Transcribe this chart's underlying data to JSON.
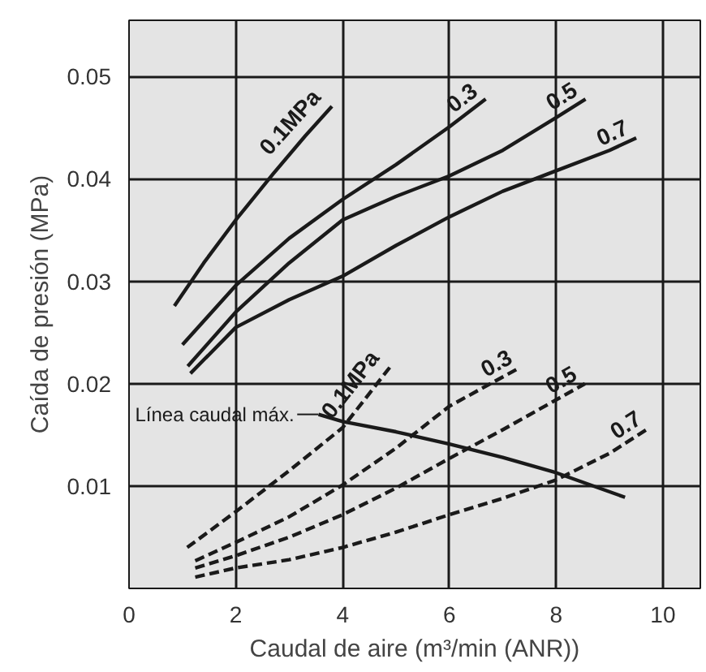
{
  "chart_data": {
    "type": "line",
    "xlabel": "Caudal de aire (m³/min (ANR))",
    "ylabel": "Caída de presión (MPa)",
    "xlim": [
      0,
      10.7
    ],
    "ylim": [
      0,
      0.0555
    ],
    "xticks": [
      0,
      2,
      4,
      6,
      8,
      10
    ],
    "yticks": [
      0.01,
      0.02,
      0.03,
      0.04,
      0.05
    ],
    "grid": true,
    "marker": "none",
    "series": [
      {
        "name": "0.1MPa",
        "color": "#1a1a1a",
        "line_style": "solid",
        "x": [
          0.85,
          1.4,
          2.0,
          2.7,
          3.3,
          3.8
        ],
        "values": [
          0.0276,
          0.0318,
          0.036,
          0.0405,
          0.0442,
          0.0471
        ]
      },
      {
        "name": "0.3",
        "color": "#1a1a1a",
        "line_style": "solid",
        "x": [
          1.0,
          2.0,
          3.0,
          4.0,
          5.0,
          6.0,
          6.68
        ],
        "values": [
          0.0238,
          0.0296,
          0.0342,
          0.038,
          0.0414,
          0.0451,
          0.0478
        ]
      },
      {
        "name": "0.5",
        "color": "#1a1a1a",
        "line_style": "solid",
        "x": [
          1.1,
          2.0,
          3.0,
          4.0,
          5.0,
          6.0,
          7.0,
          8.0,
          8.55
        ],
        "values": [
          0.0217,
          0.027,
          0.0318,
          0.036,
          0.0383,
          0.0403,
          0.0428,
          0.046,
          0.0478
        ]
      },
      {
        "name": "0.7",
        "color": "#1a1a1a",
        "line_style": "solid",
        "x": [
          1.15,
          2.0,
          3.0,
          4.0,
          5.0,
          6.0,
          7.0,
          8.0,
          9.0,
          9.5
        ],
        "values": [
          0.021,
          0.0255,
          0.0282,
          0.0305,
          0.0335,
          0.0363,
          0.0388,
          0.0408,
          0.0428,
          0.044
        ]
      },
      {
        "name": "0.1MPa",
        "color": "#1a1a1a",
        "line_style": "dashed",
        "x": [
          1.09,
          2.0,
          3.0,
          4.0,
          4.9
        ],
        "values": [
          0.004,
          0.0075,
          0.0115,
          0.0157,
          0.0217
        ]
      },
      {
        "name": "0.3",
        "color": "#1a1a1a",
        "line_style": "dashed",
        "x": [
          1.24,
          2.0,
          3.0,
          4.0,
          5.0,
          6.0,
          7.33
        ],
        "values": [
          0.0027,
          0.0045,
          0.007,
          0.0101,
          0.0137,
          0.0178,
          0.0216
        ]
      },
      {
        "name": "0.5",
        "color": "#1a1a1a",
        "line_style": "dashed",
        "x": [
          1.24,
          2.0,
          3.0,
          4.0,
          5.0,
          6.0,
          7.0,
          8.54
        ],
        "values": [
          0.002,
          0.0032,
          0.005,
          0.0072,
          0.0098,
          0.0127,
          0.0155,
          0.02
        ]
      },
      {
        "name": "0.7",
        "color": "#1a1a1a",
        "line_style": "dashed",
        "x": [
          1.24,
          2.0,
          3.0,
          4.0,
          5.0,
          6.0,
          7.0,
          8.0,
          9.0,
          9.75
        ],
        "values": [
          0.0011,
          0.002,
          0.0028,
          0.004,
          0.0055,
          0.0072,
          0.0088,
          0.0106,
          0.0132,
          0.0157
        ]
      },
      {
        "color": "#1a1a1a",
        "line_style": "solid",
        "x": [
          3.55,
          4.0,
          5.0,
          6.0,
          7.0,
          8.0,
          9.29
        ],
        "values": [
          0.017,
          0.0163,
          0.0153,
          0.0141,
          0.0128,
          0.0113,
          0.0089
        ]
      }
    ],
    "annotations": [
      {
        "text": "Línea caudal máx.",
        "x": 3.55,
        "y": 0.017
      }
    ]
  }
}
